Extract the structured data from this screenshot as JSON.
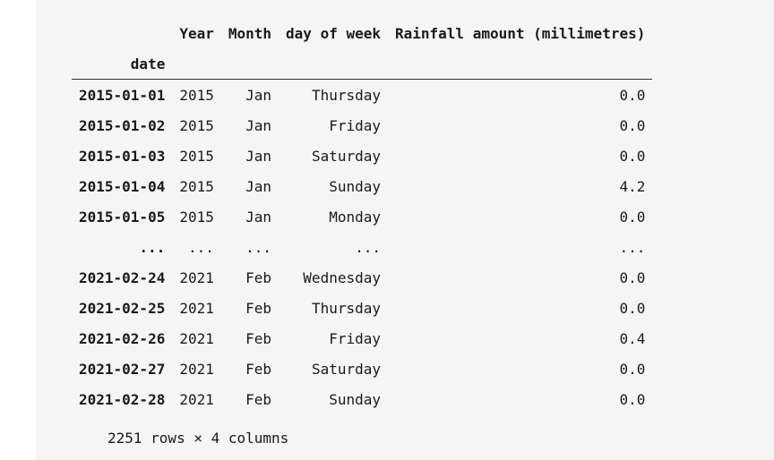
{
  "table": {
    "columns": [
      "Year",
      "Month",
      "day of week",
      "Rainfall amount (millimetres)"
    ],
    "index_name": "date",
    "rows": [
      {
        "date": "2015-01-01",
        "year": "2015",
        "month": "Jan",
        "dow": "Thursday",
        "rain": "0.0"
      },
      {
        "date": "2015-01-02",
        "year": "2015",
        "month": "Jan",
        "dow": "Friday",
        "rain": "0.0"
      },
      {
        "date": "2015-01-03",
        "year": "2015",
        "month": "Jan",
        "dow": "Saturday",
        "rain": "0.0"
      },
      {
        "date": "2015-01-04",
        "year": "2015",
        "month": "Jan",
        "dow": "Sunday",
        "rain": "4.2"
      },
      {
        "date": "2015-01-05",
        "year": "2015",
        "month": "Jan",
        "dow": "Monday",
        "rain": "0.0"
      },
      {
        "date": "...",
        "year": "...",
        "month": "...",
        "dow": "...",
        "rain": "..."
      },
      {
        "date": "2021-02-24",
        "year": "2021",
        "month": "Feb",
        "dow": "Wednesday",
        "rain": "0.0"
      },
      {
        "date": "2021-02-25",
        "year": "2021",
        "month": "Feb",
        "dow": "Thursday",
        "rain": "0.0"
      },
      {
        "date": "2021-02-26",
        "year": "2021",
        "month": "Feb",
        "dow": "Friday",
        "rain": "0.4"
      },
      {
        "date": "2021-02-27",
        "year": "2021",
        "month": "Feb",
        "dow": "Saturday",
        "rain": "0.0"
      },
      {
        "date": "2021-02-28",
        "year": "2021",
        "month": "Feb",
        "dow": "Sunday",
        "rain": "0.0"
      }
    ]
  },
  "footer": "2251 rows × 4 columns"
}
